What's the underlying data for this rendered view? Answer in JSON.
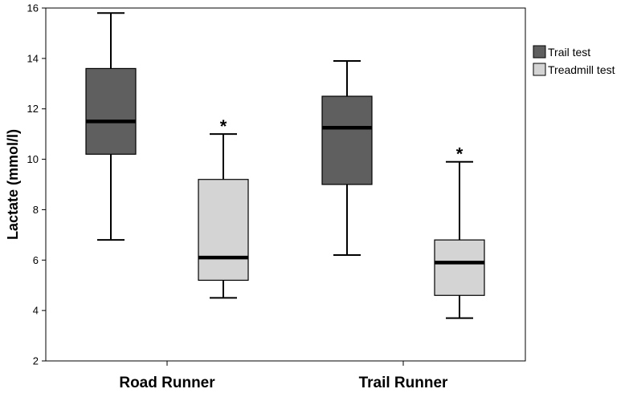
{
  "chart_data": {
    "type": "box",
    "ylabel": "Lactate (mmol/l)",
    "xlabel": "",
    "ylim": [
      2,
      16
    ],
    "yticks": [
      2,
      4,
      6,
      8,
      10,
      12,
      14,
      16
    ],
    "categories": [
      "Road Runner",
      "Trail Runner"
    ],
    "legend_position": "right",
    "series": [
      {
        "name": "Trail test",
        "color": "#5f5f5f",
        "boxes": [
          {
            "category": "Road Runner",
            "min": 6.8,
            "q1": 10.2,
            "median": 11.5,
            "q3": 13.6,
            "max": 15.8
          },
          {
            "category": "Trail Runner",
            "min": 6.2,
            "q1": 9.0,
            "median": 11.25,
            "q3": 12.5,
            "max": 13.9
          }
        ]
      },
      {
        "name": "Treadmill test",
        "color": "#d4d4d4",
        "boxes": [
          {
            "category": "Road Runner",
            "min": 4.5,
            "q1": 5.2,
            "median": 6.1,
            "q3": 9.2,
            "max": 11.0
          },
          {
            "category": "Trail Runner",
            "min": 3.7,
            "q1": 4.6,
            "median": 5.9,
            "q3": 6.8,
            "max": 9.9
          }
        ]
      }
    ],
    "annotations": [
      {
        "text": "*",
        "category": "Road Runner",
        "series": "Treadmill test"
      },
      {
        "text": "*",
        "category": "Trail Runner",
        "series": "Treadmill test"
      }
    ]
  }
}
